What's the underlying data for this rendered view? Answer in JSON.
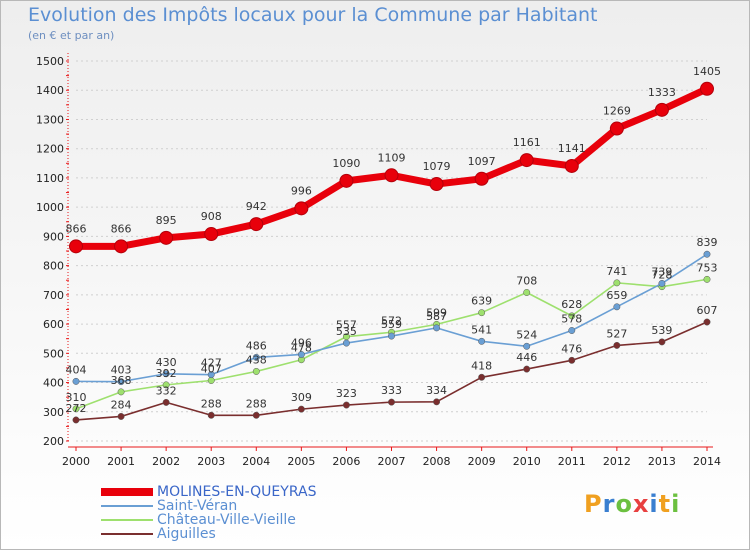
{
  "title": "Evolution des Impôts locaux pour la Commune par Habitant",
  "subtitle": "(en € et par an)",
  "brand": "Proxiti",
  "colors": {
    "title": "#5b8fd2",
    "axis": "#e8181a",
    "grid": "#d0d0d0"
  },
  "chart_data": {
    "type": "line",
    "x": [
      2000,
      2001,
      2002,
      2003,
      2004,
      2005,
      2006,
      2007,
      2008,
      2009,
      2010,
      2011,
      2012,
      2013,
      2014
    ],
    "ylim": [
      200,
      1500
    ],
    "yticks": [
      200,
      300,
      400,
      500,
      600,
      700,
      800,
      900,
      1000,
      1100,
      1200,
      1300,
      1400,
      1500
    ],
    "grid": true,
    "legend_position": "bottom-left",
    "series": [
      {
        "name": "MOLINES-EN-QUEYRAS",
        "color": "#e8000b",
        "values": [
          866,
          866,
          895,
          908,
          942,
          996,
          1090,
          1109,
          1079,
          1097,
          1161,
          1141,
          1269,
          1333,
          1405
        ]
      },
      {
        "name": "Saint-Véran",
        "color": "#6a9fd4",
        "values": [
          404,
          403,
          430,
          427,
          486,
          496,
          535,
          559,
          587,
          541,
          524,
          578,
          659,
          739,
          839
        ]
      },
      {
        "name": "Château-Ville-Vieille",
        "color": "#9ee06e",
        "values": [
          310,
          368,
          392,
          407,
          438,
          478,
          557,
          572,
          599,
          639,
          708,
          628,
          741,
          728,
          753
        ]
      },
      {
        "name": "Aiguilles",
        "color": "#7a2e2e",
        "values": [
          272,
          284,
          332,
          288,
          288,
          309,
          323,
          333,
          334,
          418,
          446,
          476,
          527,
          539,
          607
        ]
      }
    ]
  }
}
